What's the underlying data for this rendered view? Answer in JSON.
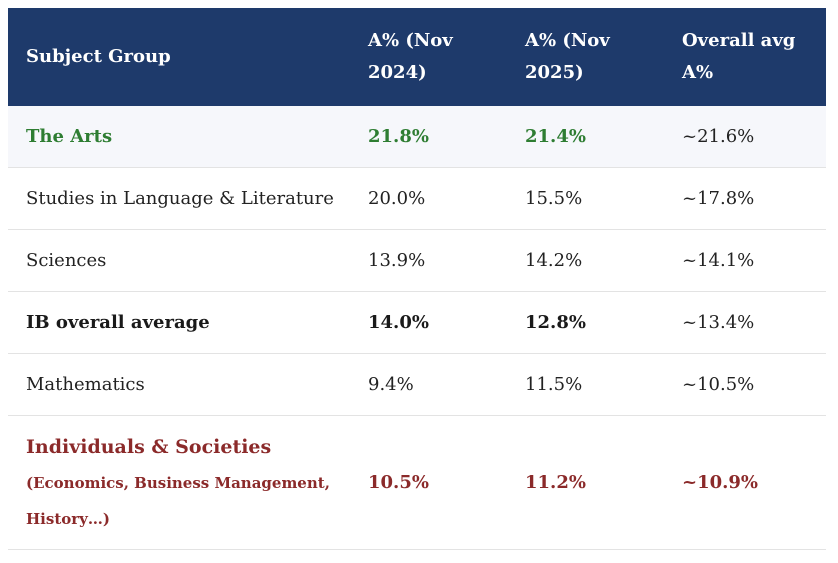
{
  "table": {
    "headers": {
      "subject": "Subject Group",
      "nov2024": "A% (Nov 2024)",
      "nov2025": "A% (Nov 2025)",
      "overall": "Overall avg A%"
    },
    "rows": [
      {
        "subject": "The Arts",
        "nov2024": "21.8%",
        "nov2025": "21.4%",
        "overall": "~21.6%"
      },
      {
        "subject": "Studies in Language & Literature",
        "nov2024": "20.0%",
        "nov2025": "15.5%",
        "overall": "~17.8%"
      },
      {
        "subject": "Sciences",
        "nov2024": "13.9%",
        "nov2025": "14.2%",
        "overall": "~14.1%"
      },
      {
        "subject": "IB overall average",
        "nov2024": "14.0%",
        "nov2025": "12.8%",
        "overall": "~13.4%"
      },
      {
        "subject": "Mathematics",
        "nov2024": "9.4%",
        "nov2025": "11.5%",
        "overall": "~10.5%"
      },
      {
        "subject": "Individuals & Societies",
        "subject_note": "(Economics, Business Management, History…)",
        "nov2024": "10.5%",
        "nov2025": "11.2%",
        "overall": "~10.9%"
      }
    ]
  },
  "colors": {
    "header_bg": "#1e3a6b",
    "arts_text": "#2e7d32",
    "societies_text": "#8b2a2a"
  }
}
